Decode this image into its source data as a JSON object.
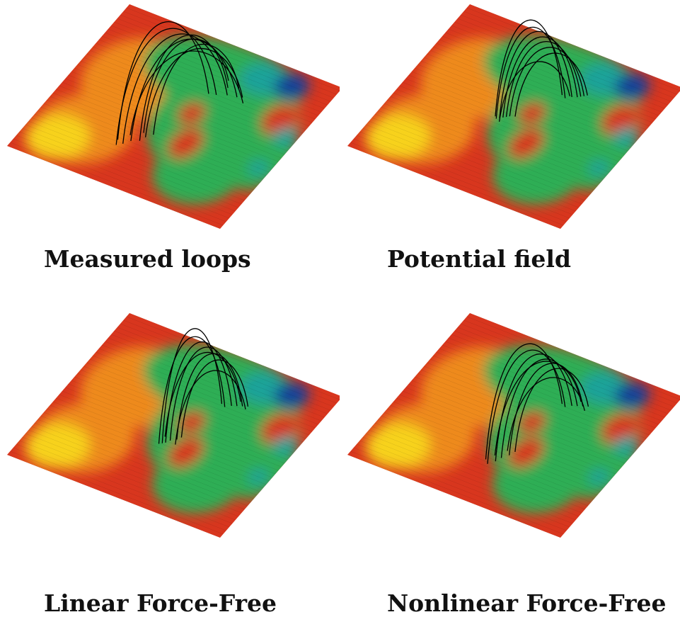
{
  "panels": [
    {
      "caption": "Measured loops",
      "loop_style": "measured"
    },
    {
      "caption": "Potential field",
      "loop_style": "potential"
    },
    {
      "caption": "Linear Force-Free",
      "loop_style": "linear"
    },
    {
      "caption": "Nonlinear Force-Free",
      "loop_style": "nonlinear"
    }
  ],
  "colors": {
    "field_red": "#d8361e",
    "field_orange": "#ee8a1e",
    "field_yellow": "#f7d21e",
    "field_green": "#2fae55",
    "field_teal": "#1fa39a",
    "field_blue": "#173f99",
    "loop_stroke": "#000000"
  }
}
